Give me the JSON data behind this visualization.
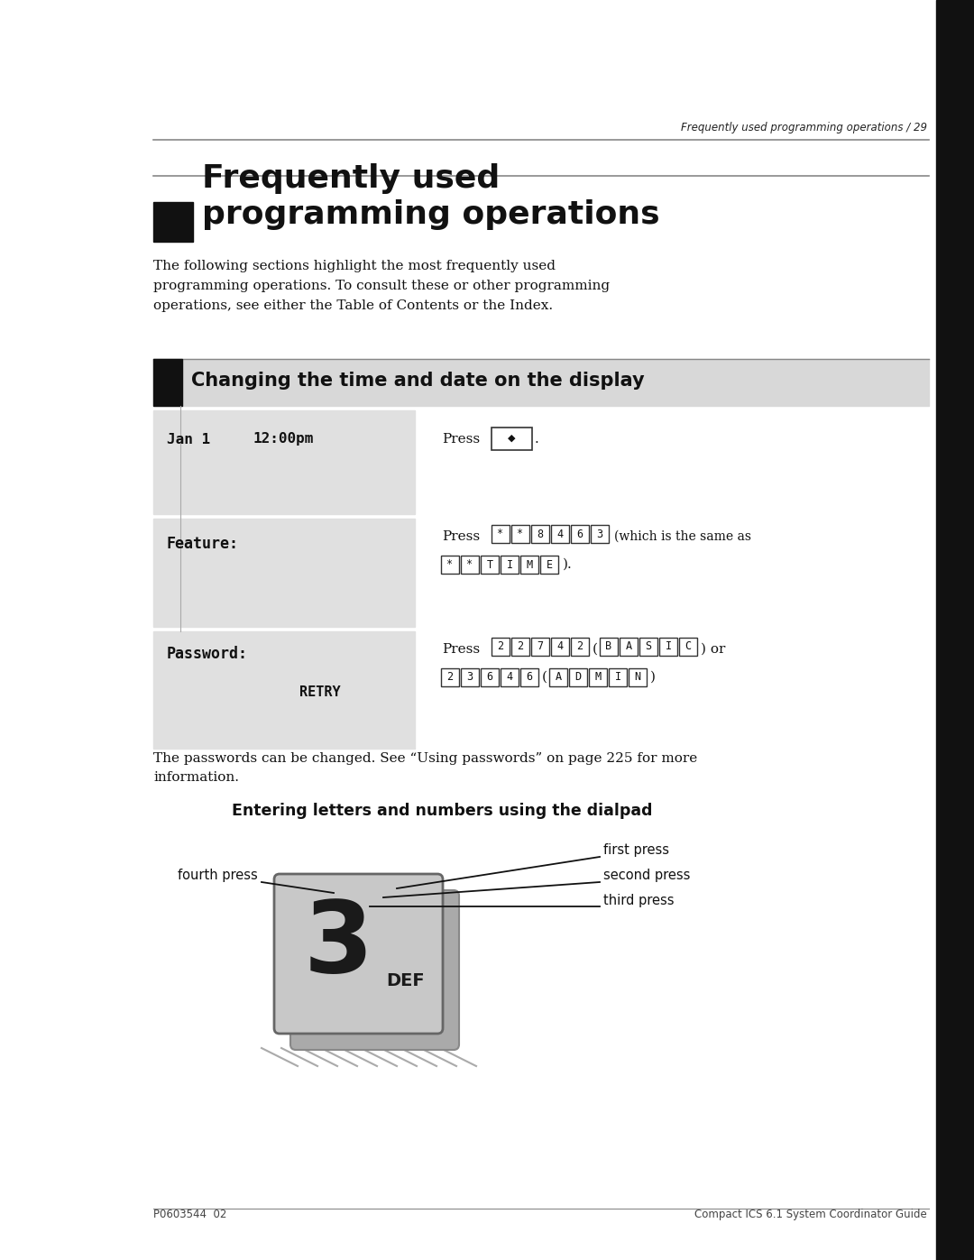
{
  "page_header_text": "Frequently used programming operations / 29",
  "chapter_title_line1": "Frequently used",
  "chapter_title_line2": "programming operations",
  "intro_text_lines": [
    "The following sections highlight the most frequently used",
    "programming operations. To consult these or other programming",
    "operations, see either the Table of Contents or the Index."
  ],
  "section_title": "Changing the time and date on the display",
  "row1_date": "Jan 1",
  "row1_time": "12:00pm",
  "row2_label": "Feature:",
  "row3_label": "Password:",
  "row3_retry": "RETRY",
  "row2_keys1": [
    "*",
    "*",
    "8",
    "4",
    "6",
    "3"
  ],
  "row2_note1": "(which is the same as",
  "row2_keys2": [
    "*",
    "*",
    "T",
    "I",
    "M",
    "E"
  ],
  "row2_note2": ").",
  "row3_keys1": [
    "2",
    "2",
    "7",
    "4",
    "2"
  ],
  "row3_letters1": [
    "B",
    "A",
    "S",
    "I",
    "C"
  ],
  "row3_or": ") or",
  "row3_keys2": [
    "2",
    "3",
    "6",
    "4",
    "6"
  ],
  "row3_letters2": [
    "A",
    "D",
    "M",
    "I",
    "N"
  ],
  "password_note_lines": [
    "The passwords can be changed. See “Using passwords” on page 225 for more",
    "information."
  ],
  "dialpad_title": "Entering letters and numbers using the dialpad",
  "footer_left": "P0603544  02",
  "footer_right": "Compact ICS 6.1 System Coordinator Guide",
  "bg_color": "#ffffff"
}
